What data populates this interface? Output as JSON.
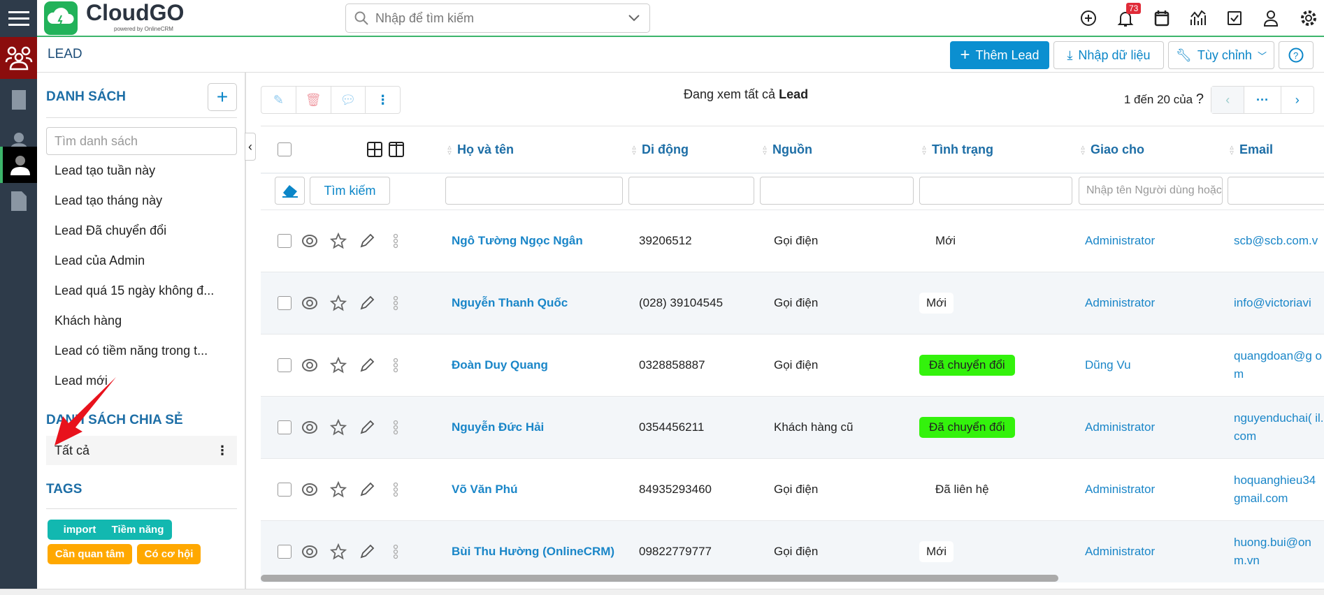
{
  "brand": {
    "name": "CloudGO",
    "powered": "powered by OnlineCRM"
  },
  "search": {
    "placeholder": "Nhập để tìm kiếm"
  },
  "notifications": {
    "count": "73"
  },
  "page": {
    "title": "LEAD"
  },
  "actions": {
    "add": "Thêm Lead",
    "import": "Nhập dữ liệu",
    "customize": "Tùy chỉnh"
  },
  "sidebar": {
    "list_title": "DANH SÁCH",
    "search_placeholder": "Tìm danh sách",
    "lists": [
      "Lead tạo tuần này",
      "Lead tạo tháng này",
      "Lead Đã chuyển đổi",
      "Lead của Admin",
      "Lead quá 15 ngày không đ...",
      "Khách hàng",
      "Lead có tiềm năng trong t...",
      "Lead mới"
    ],
    "shared_title": "DANH SÁCH CHIA SẺ",
    "shared": [
      "Tất cả"
    ],
    "tags_title": "TAGS",
    "tags": [
      {
        "label": "import",
        "color": "#12b8b0"
      },
      {
        "label": "Tiềm năng",
        "color": "#12b8b0"
      },
      {
        "label": "Cần quan tâm",
        "color": "#ffa800"
      },
      {
        "label": "Có cơ hội",
        "color": "#ffa800"
      }
    ]
  },
  "main": {
    "viewing_prefix": "Đang xem tất cả",
    "viewing_module": "Lead",
    "pagination": "1 đến 20 của",
    "pagination_help": "?",
    "search_button": "Tìm kiếm",
    "columns": [
      "Họ và tên",
      "Di động",
      "Nguồn",
      "Tình trạng",
      "Giao cho",
      "Email"
    ],
    "assignee_filter_placeholder": "Nhập tên Người dùng hoặc",
    "rows": [
      {
        "name": "Ngô Tường Ngọc Ngân",
        "phone": "39206512",
        "source": "Gọi điện",
        "status": "Mới",
        "status_bg": "",
        "assignee": "Administrator",
        "email": "scb@scb.com.v"
      },
      {
        "name": "Nguyễn Thanh Quốc",
        "phone": "(028) 39104545",
        "source": "Gọi điện",
        "status": "Mới",
        "status_bg": "#ffffff",
        "assignee": "Administrator",
        "email": "info@victoriavi"
      },
      {
        "name": "Đoàn Duy Quang",
        "phone": "0328858887",
        "source": "Gọi điện",
        "status": "Đã chuyển đổi",
        "status_bg": "#33f20c",
        "assignee": "Dũng Vu",
        "email": "quangdoan@g om"
      },
      {
        "name": "Nguyễn Đức Hải",
        "phone": "0354456211",
        "source": "Khách hàng cũ",
        "status": "Đã chuyển đổi",
        "status_bg": "#33f20c",
        "assignee": "Administrator",
        "email": "nguyenduchai( il.com"
      },
      {
        "name": "Võ Văn Phú",
        "phone": "84935293460",
        "source": "Gọi điện",
        "status": "Đã liên hệ",
        "status_bg": "",
        "assignee": "Administrator",
        "email": "hoquanghieu34 gmail.com"
      },
      {
        "name": "Bùi Thu Hường (OnlineCRM)",
        "phone": "09822779777",
        "source": "Gọi điện",
        "status": "Mới",
        "status_bg": "#ffffff",
        "assignee": "Administrator",
        "email": "huong.bui@on m.vn"
      }
    ]
  },
  "colors": {
    "accent": "#0b8fd0",
    "rail": "#2e3b4a",
    "rail_active": "#8b0d0d"
  }
}
